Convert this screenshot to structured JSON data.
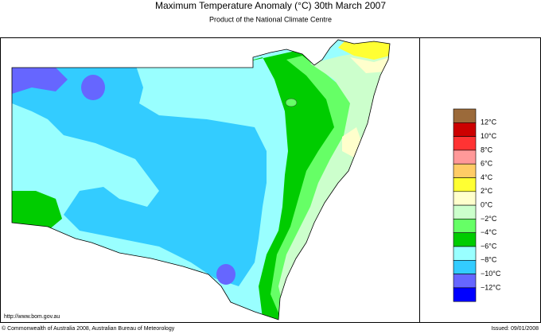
{
  "header": {
    "title": "Maximum Temperature Anomaly (°C)  30th March 2007",
    "subtitle": "Product of the National Climate Centre"
  },
  "legend": {
    "labels": [
      "12°C",
      "10°C",
      "8°C",
      "6°C",
      "4°C",
      "2°C",
      "0°C",
      "−2°C",
      "−4°C",
      "−6°C",
      "−8°C",
      "−10°C",
      "−12°C"
    ],
    "colors": [
      "#9b6a3a",
      "#cc0000",
      "#ff3333",
      "#ff9999",
      "#ffcc66",
      "#ffff33",
      "#ffffcc",
      "#ccffcc",
      "#66ff66",
      "#00cc00",
      "#99ffff",
      "#33ccff",
      "#6666ff",
      "#0000ff"
    ]
  },
  "footer": {
    "url": "http://www.bom.gov.au",
    "copyright": "© Commonwealth of Australia 2008, Australian Bureau of Meteorology",
    "issued": "Issued: 09/01/2008"
  }
}
